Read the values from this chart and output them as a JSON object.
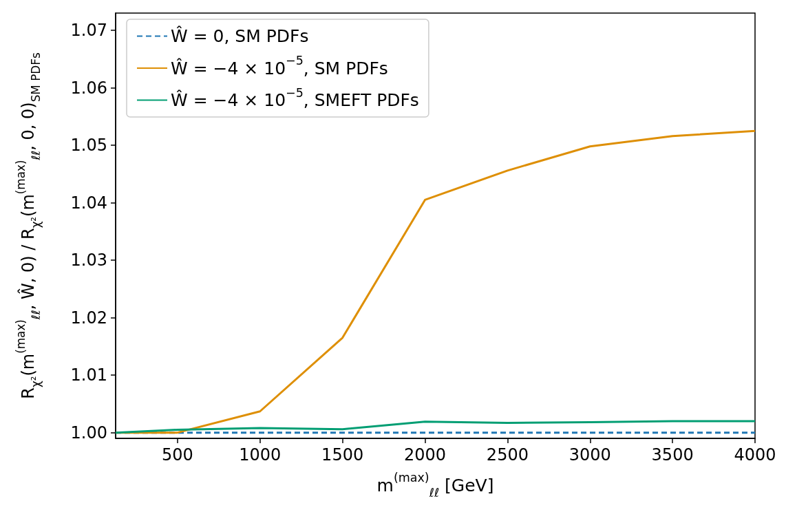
{
  "chart_data": {
    "type": "line",
    "xlabel": "m$^{(max)}$$_{ℓℓ}$ [GeV]",
    "ylabel": "R$_{χ²}$(m$^{(max)}$$_{ℓℓ}$, Ŵ, 0) / R$_{χ²}$(m$^{(max)}$$_{ℓℓ}$, 0, 0)$_{SM PDFs}$",
    "x": [
      125,
      500,
      1000,
      1500,
      2000,
      2500,
      3000,
      3500,
      4000
    ],
    "series": [
      {
        "name": "Ŵ = 0, SM PDFs",
        "color": "#1f77b4",
        "line_style": "dashed",
        "values": [
          1.0,
          1.0,
          1.0,
          1.0,
          1.0,
          1.0,
          1.0,
          1.0,
          1.0
        ]
      },
      {
        "name": "Ŵ = −4 × 10$^{−5}$, SM PDFs",
        "color": "#de8f05",
        "line_style": "solid",
        "values": [
          1.0,
          1.0,
          1.0037,
          1.0165,
          1.0405,
          1.0456,
          1.0498,
          1.0516,
          1.0525
        ]
      },
      {
        "name": "Ŵ = −4 × 10$^{−5}$, SMEFT PDFs",
        "color": "#029e73",
        "line_style": "solid",
        "values": [
          1.0,
          1.0005,
          1.0008,
          1.0006,
          1.0019,
          1.0017,
          1.0018,
          1.002,
          1.002
        ]
      }
    ],
    "xlim": [
      125,
      4000
    ],
    "xticks": [
      500,
      1000,
      1500,
      2000,
      2500,
      3000,
      3500,
      4000
    ],
    "ylim": [
      0.999,
      1.073
    ],
    "yticks": [
      {
        "value": 1.0,
        "label": "1.00"
      },
      {
        "value": 1.01,
        "label": "1.01"
      },
      {
        "value": 1.02,
        "label": "1.02"
      },
      {
        "value": 1.03,
        "label": "1.03"
      },
      {
        "value": 1.04,
        "label": "1.04"
      },
      {
        "value": 1.05,
        "label": "1.05"
      },
      {
        "value": 1.06,
        "label": "1.06"
      },
      {
        "value": 1.07,
        "label": "1.07"
      }
    ],
    "grid": false,
    "legend": "top left",
    "marker": "none"
  }
}
